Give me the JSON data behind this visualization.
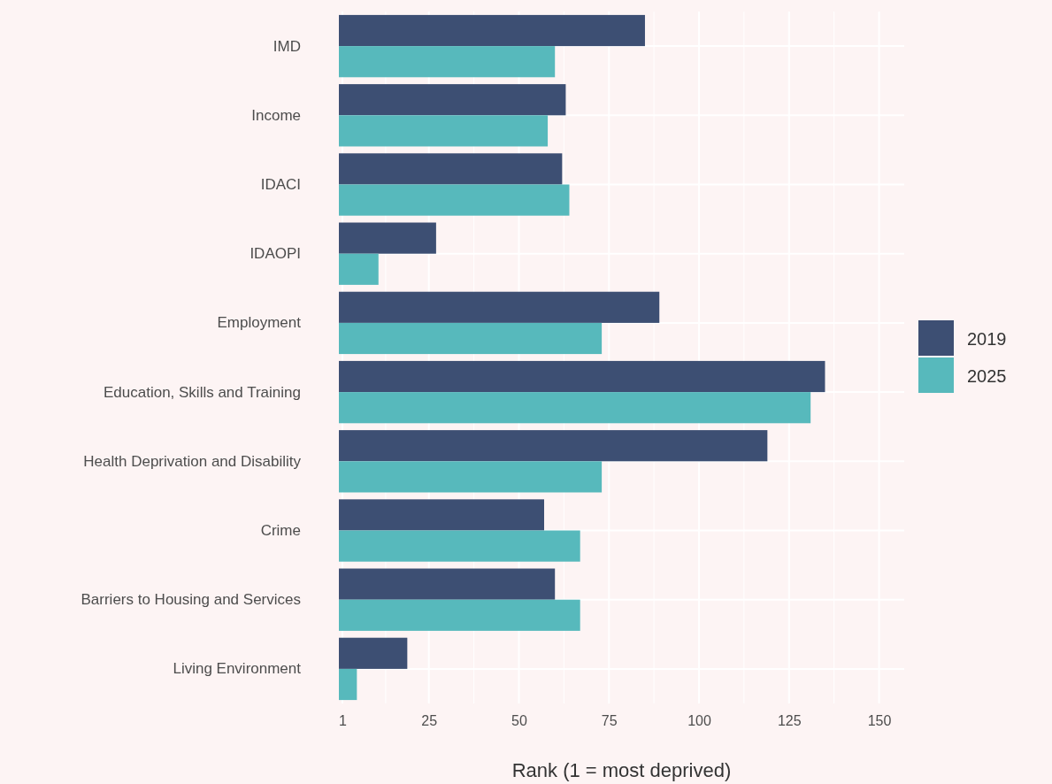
{
  "chart_data": {
    "type": "bar",
    "orientation": "horizontal",
    "xlabel": "Rank (1 = most deprived)",
    "categories": [
      "IMD",
      "Income",
      "IDACI",
      "IDAOPI",
      "Employment",
      "Education, Skills and Training",
      "Health Deprivation and Disability",
      "Crime",
      "Barriers to Housing and Services",
      "Living Environment"
    ],
    "series": [
      {
        "name": "2019",
        "color": "#3d4f73",
        "values": [
          85,
          63,
          62,
          27,
          89,
          135,
          119,
          57,
          60,
          19
        ]
      },
      {
        "name": "2025",
        "color": "#57b9bc",
        "values": [
          60,
          58,
          64,
          11,
          73,
          131,
          73,
          67,
          67,
          5
        ]
      }
    ],
    "xlim": [
      0,
      157
    ],
    "xticks": [
      1,
      25,
      50,
      75,
      100,
      125,
      150
    ],
    "grid": true,
    "legend": "right"
  }
}
